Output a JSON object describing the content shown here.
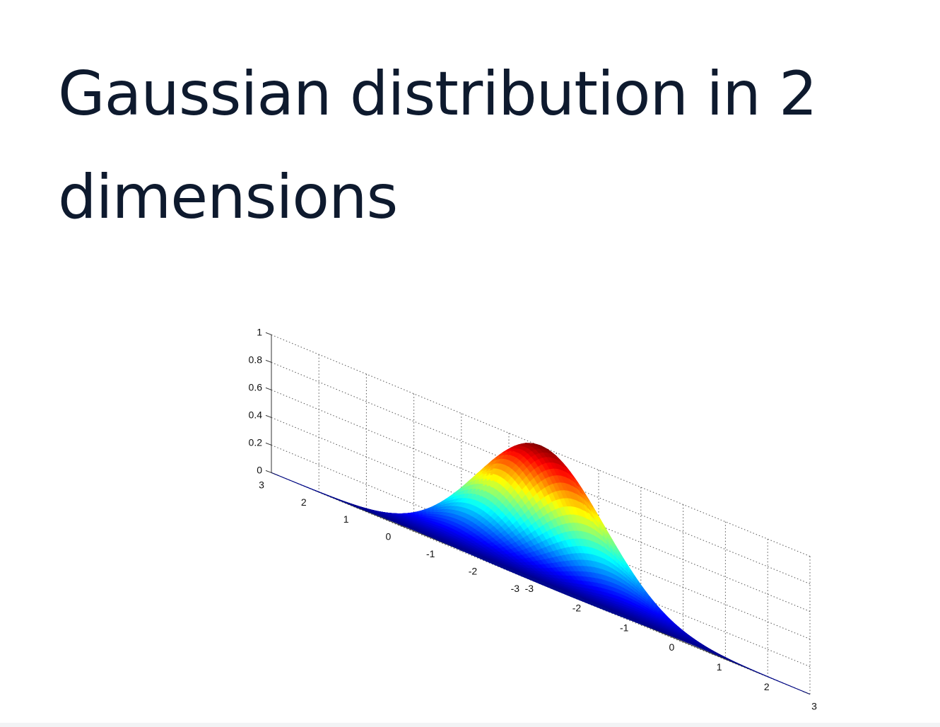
{
  "slide": {
    "title": "Gaussian distribution in 2 dimensions"
  },
  "chart_data": {
    "type": "surface",
    "title": "Gaussian distribution in 2 dimensions",
    "function": "z = exp(-(x^2 + y^2) / 2)",
    "peak_value": 1.0,
    "x_range": [
      -3,
      3
    ],
    "y_range": [
      -3,
      3
    ],
    "z_range": [
      0,
      1
    ],
    "x_ticks": [
      -3,
      -2,
      -1,
      0,
      1,
      2,
      3
    ],
    "y_ticks": [
      -3,
      -2,
      -1,
      0,
      1,
      2,
      3
    ],
    "z_ticks": [
      0,
      0.2,
      0.4,
      0.6,
      0.8,
      1
    ],
    "x_tick_labels": [
      "-3",
      "-2",
      "-1",
      "0",
      "1",
      "2",
      "3"
    ],
    "y_tick_labels": [
      "-3",
      "-2",
      "-1",
      "0",
      "1",
      "2",
      "3"
    ],
    "z_tick_labels": [
      "0",
      "0.2",
      "0.4",
      "0.6",
      "0.8",
      "1"
    ],
    "colormap": "jet",
    "grid": true,
    "xlabel": "",
    "ylabel": "",
    "zlabel": ""
  },
  "colors": {
    "title_text": "#0e1a2e",
    "floor": "#000a8f"
  }
}
